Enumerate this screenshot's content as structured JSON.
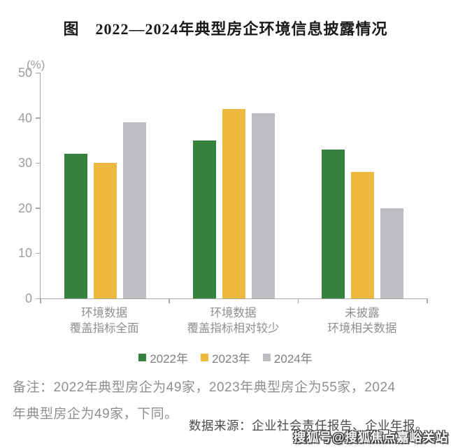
{
  "title": "图　2022—2024年典型房企环境信息披露情况",
  "chart_data": {
    "type": "bar",
    "title": "图 2022—2024年典型房企环境信息披露情况",
    "unit_label": "(%)",
    "categories": [
      "环境数据覆盖指标全面",
      "环境数据覆盖指标相对较少",
      "未披露环境相关数据"
    ],
    "category_label_lines": [
      [
        "环境数据",
        "覆盖指标全面"
      ],
      [
        "环境数据",
        "覆盖指标相对较少"
      ],
      [
        "未披露",
        "环境相关数据"
      ]
    ],
    "series": [
      {
        "name": "2022年",
        "color": "#37813F",
        "values": [
          32,
          35,
          33
        ]
      },
      {
        "name": "2023年",
        "color": "#ECB83D",
        "values": [
          30,
          42,
          28
        ]
      },
      {
        "name": "2024年",
        "color": "#BDBEC1",
        "values": [
          39,
          41,
          20
        ]
      }
    ],
    "ylim": [
      0,
      50
    ],
    "yticks": [
      0,
      10,
      20,
      30,
      40,
      50
    ],
    "grid": false,
    "legend_position": "bottom"
  },
  "notes": {
    "line1": "备注：2022年典型房企为49家，2023年典型房企为55家，2024",
    "line2": "年典型房企为49家，下同。"
  },
  "source": "数据来源：企业社会责任报告、企业年报。",
  "watermark": "搜狐号@搜狐焦点嘉峪关站",
  "colors": {
    "axis": "#A8A8A8",
    "axis_text": "#9E9E9E",
    "category_text": "#8F8F8F",
    "note_text": "#8F8F8F",
    "source_text": "#4A4A4A",
    "title_text": "#1A1A1A"
  }
}
